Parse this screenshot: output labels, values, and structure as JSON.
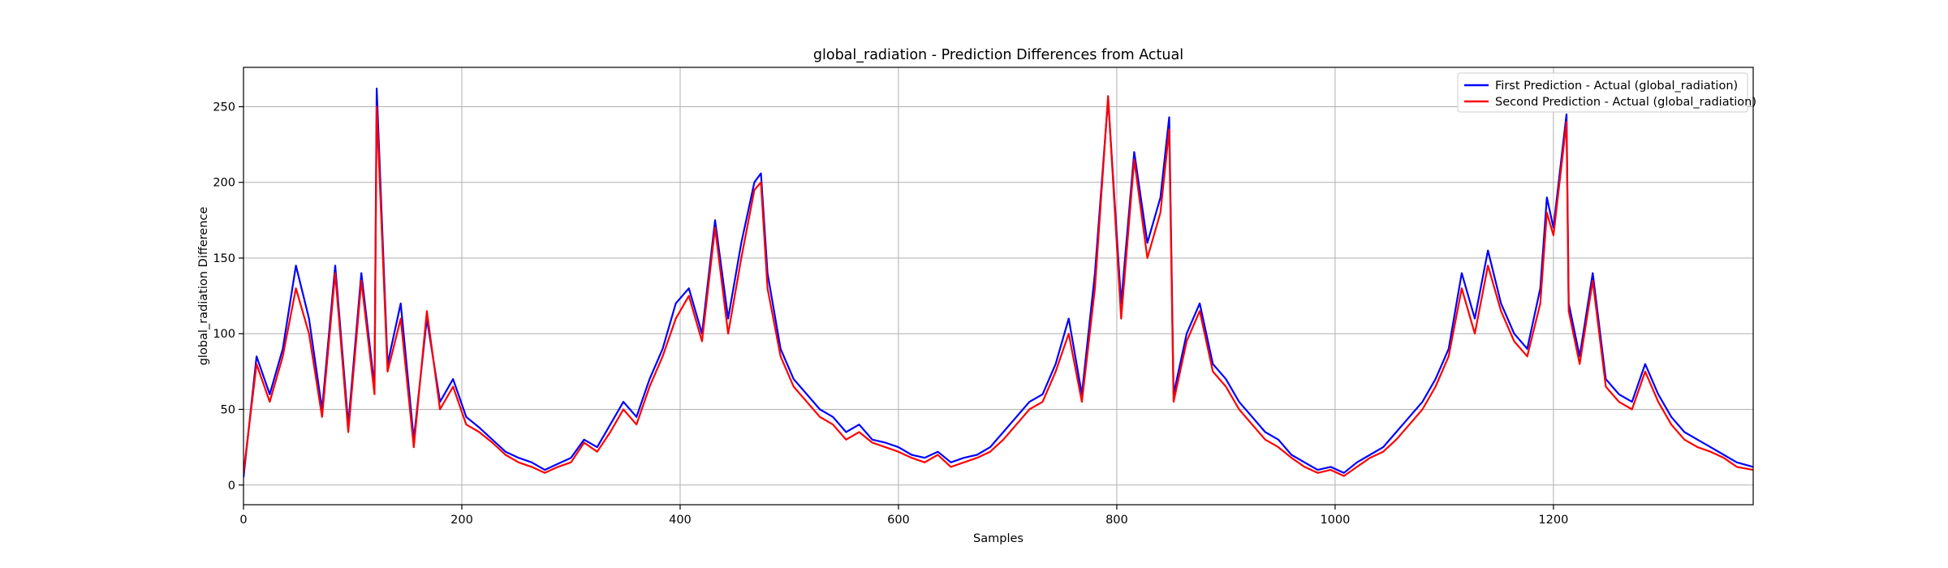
{
  "chart_data": {
    "type": "line",
    "title": "global_radiation - Prediction Differences from Actual",
    "xlabel": "Samples",
    "ylabel": "global_radiation Difference",
    "xlim": [
      0,
      1383
    ],
    "ylim": [
      -13,
      276
    ],
    "x_ticks": [
      0,
      200,
      400,
      600,
      800,
      1000,
      1200
    ],
    "y_ticks": [
      0,
      50,
      100,
      150,
      200,
      250
    ],
    "grid": true,
    "legend_position": "upper-right",
    "series": [
      {
        "name": "First Prediction - Actual (global_radiation)",
        "color": "#0000ff",
        "x": [
          0,
          12,
          24,
          36,
          48,
          60,
          72,
          84,
          96,
          108,
          120,
          122,
          132,
          144,
          156,
          168,
          180,
          192,
          204,
          216,
          228,
          240,
          252,
          264,
          276,
          288,
          300,
          312,
          324,
          336,
          348,
          360,
          372,
          384,
          396,
          408,
          420,
          432,
          444,
          456,
          468,
          474,
          480,
          492,
          504,
          516,
          528,
          540,
          552,
          564,
          576,
          588,
          600,
          612,
          624,
          636,
          648,
          660,
          672,
          684,
          696,
          708,
          720,
          732,
          744,
          756,
          768,
          780,
          792,
          804,
          816,
          828,
          840,
          848,
          852,
          864,
          876,
          888,
          900,
          912,
          924,
          936,
          948,
          960,
          972,
          984,
          996,
          1008,
          1020,
          1032,
          1044,
          1056,
          1068,
          1080,
          1092,
          1104,
          1116,
          1128,
          1140,
          1152,
          1164,
          1176,
          1188,
          1194,
          1200,
          1212,
          1214,
          1224,
          1236,
          1248,
          1260,
          1272,
          1284,
          1296,
          1308,
          1320,
          1332,
          1344,
          1356,
          1368,
          1383
        ],
        "y": [
          5,
          85,
          60,
          90,
          145,
          110,
          50,
          145,
          40,
          140,
          65,
          262,
          80,
          120,
          30,
          110,
          55,
          70,
          45,
          38,
          30,
          22,
          18,
          15,
          10,
          14,
          18,
          30,
          25,
          40,
          55,
          45,
          70,
          90,
          120,
          130,
          100,
          175,
          110,
          160,
          200,
          206,
          140,
          90,
          70,
          60,
          50,
          45,
          35,
          40,
          30,
          28,
          25,
          20,
          18,
          22,
          15,
          18,
          20,
          25,
          35,
          45,
          55,
          60,
          80,
          110,
          60,
          140,
          255,
          120,
          220,
          160,
          190,
          243,
          60,
          100,
          120,
          80,
          70,
          55,
          45,
          35,
          30,
          20,
          15,
          10,
          12,
          8,
          15,
          20,
          25,
          35,
          45,
          55,
          70,
          90,
          140,
          110,
          155,
          120,
          100,
          90,
          130,
          190,
          170,
          245,
          120,
          85,
          140,
          70,
          60,
          55,
          80,
          60,
          45,
          35,
          30,
          25,
          20,
          15,
          12
        ]
      },
      {
        "name": "Second Prediction - Actual (global_radiation)",
        "color": "#ff0000",
        "x": [
          0,
          12,
          24,
          36,
          48,
          60,
          72,
          84,
          96,
          108,
          120,
          122,
          132,
          144,
          156,
          168,
          180,
          192,
          204,
          216,
          228,
          240,
          252,
          264,
          276,
          288,
          300,
          312,
          324,
          336,
          348,
          360,
          372,
          384,
          396,
          408,
          420,
          432,
          444,
          456,
          468,
          474,
          480,
          492,
          504,
          516,
          528,
          540,
          552,
          564,
          576,
          588,
          600,
          612,
          624,
          636,
          648,
          660,
          672,
          684,
          696,
          708,
          720,
          732,
          744,
          756,
          768,
          780,
          792,
          804,
          816,
          828,
          840,
          848,
          852,
          864,
          876,
          888,
          900,
          912,
          924,
          936,
          948,
          960,
          972,
          984,
          996,
          1008,
          1020,
          1032,
          1044,
          1056,
          1068,
          1080,
          1092,
          1104,
          1116,
          1128,
          1140,
          1152,
          1164,
          1176,
          1188,
          1194,
          1200,
          1212,
          1214,
          1224,
          1236,
          1248,
          1260,
          1272,
          1284,
          1296,
          1308,
          1320,
          1332,
          1344,
          1356,
          1368,
          1383
        ],
        "y": [
          8,
          80,
          55,
          85,
          130,
          100,
          45,
          140,
          35,
          135,
          60,
          250,
          75,
          110,
          25,
          115,
          50,
          65,
          40,
          35,
          28,
          20,
          15,
          12,
          8,
          12,
          15,
          28,
          22,
          35,
          50,
          40,
          65,
          85,
          110,
          125,
          95,
          170,
          100,
          150,
          195,
          200,
          130,
          85,
          65,
          55,
          45,
          40,
          30,
          35,
          28,
          25,
          22,
          18,
          15,
          20,
          12,
          15,
          18,
          22,
          30,
          40,
          50,
          55,
          75,
          100,
          55,
          130,
          257,
          110,
          215,
          150,
          180,
          235,
          55,
          95,
          115,
          75,
          65,
          50,
          40,
          30,
          25,
          18,
          12,
          8,
          10,
          6,
          12,
          18,
          22,
          30,
          40,
          50,
          65,
          85,
          130,
          100,
          145,
          115,
          95,
          85,
          120,
          180,
          165,
          240,
          115,
          80,
          135,
          65,
          55,
          50,
          75,
          55,
          40,
          30,
          25,
          22,
          18,
          12,
          10
        ]
      }
    ]
  }
}
